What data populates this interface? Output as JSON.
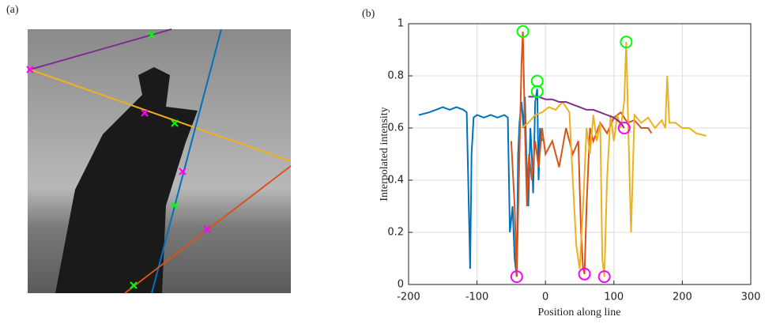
{
  "image_panel": {
    "label": "(a)"
  },
  "chart_data": {
    "type": "line",
    "title": "(b)",
    "x_label": "Position along line",
    "y_label": "Interpolated intensity",
    "xlim": [
      -200,
      300
    ],
    "xticks": [
      -200,
      -100,
      0,
      100,
      200,
      300
    ],
    "ylim": [
      0,
      1
    ],
    "yticks": [
      0,
      0.2,
      0.4,
      0.6,
      0.8,
      1
    ],
    "grid": true,
    "series": [
      {
        "color": "#0072bd",
        "x": [
          -185,
          -170,
          -160,
          -150,
          -140,
          -130,
          -120,
          -115,
          -112,
          -110,
          -108,
          -105,
          -100,
          -90,
          -80,
          -70,
          -60,
          -55,
          -52,
          -48,
          -45,
          -42,
          -40,
          -38,
          -35,
          -32,
          -30,
          -28,
          -25,
          -22,
          -20,
          -18,
          -15,
          -12,
          -10,
          -8,
          -5
        ],
        "values": [
          0.65,
          0.66,
          0.67,
          0.68,
          0.67,
          0.68,
          0.67,
          0.66,
          0.3,
          0.06,
          0.5,
          0.64,
          0.65,
          0.64,
          0.65,
          0.64,
          0.65,
          0.64,
          0.2,
          0.3,
          0.1,
          0.03,
          0.5,
          0.62,
          0.7,
          0.6,
          0.72,
          0.5,
          0.3,
          0.6,
          0.5,
          0.35,
          0.7,
          0.75,
          0.4,
          0.6,
          0.55
        ]
      },
      {
        "color": "#d95319",
        "x": [
          -50,
          -45,
          -42,
          -38,
          -35,
          -33,
          -30,
          -27,
          -24,
          -20,
          -15,
          -10,
          -5,
          0,
          10,
          20,
          30,
          40,
          48,
          52,
          55,
          57,
          60,
          65,
          70,
          80,
          90,
          100,
          110,
          120,
          130,
          140,
          150,
          155
        ],
        "values": [
          0.55,
          0.3,
          0.03,
          0.5,
          0.85,
          0.97,
          0.6,
          0.3,
          0.5,
          0.4,
          0.55,
          0.45,
          0.6,
          0.5,
          0.55,
          0.45,
          0.6,
          0.5,
          0.55,
          0.2,
          0.06,
          0.04,
          0.3,
          0.6,
          0.55,
          0.62,
          0.58,
          0.64,
          0.66,
          0.62,
          0.63,
          0.6,
          0.6,
          0.58
        ]
      },
      {
        "color": "#edb120",
        "x": [
          -35,
          -25,
          -15,
          -5,
          5,
          15,
          25,
          35,
          40,
          45,
          50,
          55,
          60,
          65,
          70,
          75,
          80,
          83,
          86,
          90,
          95,
          100,
          105,
          110,
          115,
          118,
          121,
          125,
          130,
          140,
          150,
          160,
          170,
          175,
          178,
          181,
          190,
          200,
          210,
          220,
          235
        ],
        "values": [
          0.6,
          0.62,
          0.65,
          0.66,
          0.68,
          0.67,
          0.7,
          0.66,
          0.4,
          0.15,
          0.06,
          0.3,
          0.6,
          0.5,
          0.65,
          0.55,
          0.62,
          0.1,
          0.03,
          0.4,
          0.65,
          0.55,
          0.65,
          0.6,
          0.7,
          0.93,
          0.6,
          0.2,
          0.65,
          0.62,
          0.64,
          0.6,
          0.63,
          0.6,
          0.8,
          0.62,
          0.62,
          0.6,
          0.6,
          0.58,
          0.57
        ]
      },
      {
        "color": "#7e2f8e",
        "x": [
          -25,
          -10,
          0,
          10,
          20,
          30,
          40,
          50,
          60,
          70,
          80,
          90,
          100,
          110,
          115
        ],
        "values": [
          0.72,
          0.72,
          0.71,
          0.71,
          0.7,
          0.7,
          0.69,
          0.68,
          0.67,
          0.67,
          0.66,
          0.65,
          0.64,
          0.62,
          0.6
        ]
      },
      {
        "color": "#00ff00",
        "marker": "circle",
        "x": [
          -33,
          -12,
          -12,
          118
        ],
        "values": [
          0.97,
          0.78,
          0.74,
          0.93
        ]
      },
      {
        "color": "#ff00ff",
        "marker": "circle",
        "x": [
          -42,
          57,
          86,
          115
        ],
        "values": [
          0.03,
          0.04,
          0.03,
          0.6
        ]
      }
    ]
  }
}
